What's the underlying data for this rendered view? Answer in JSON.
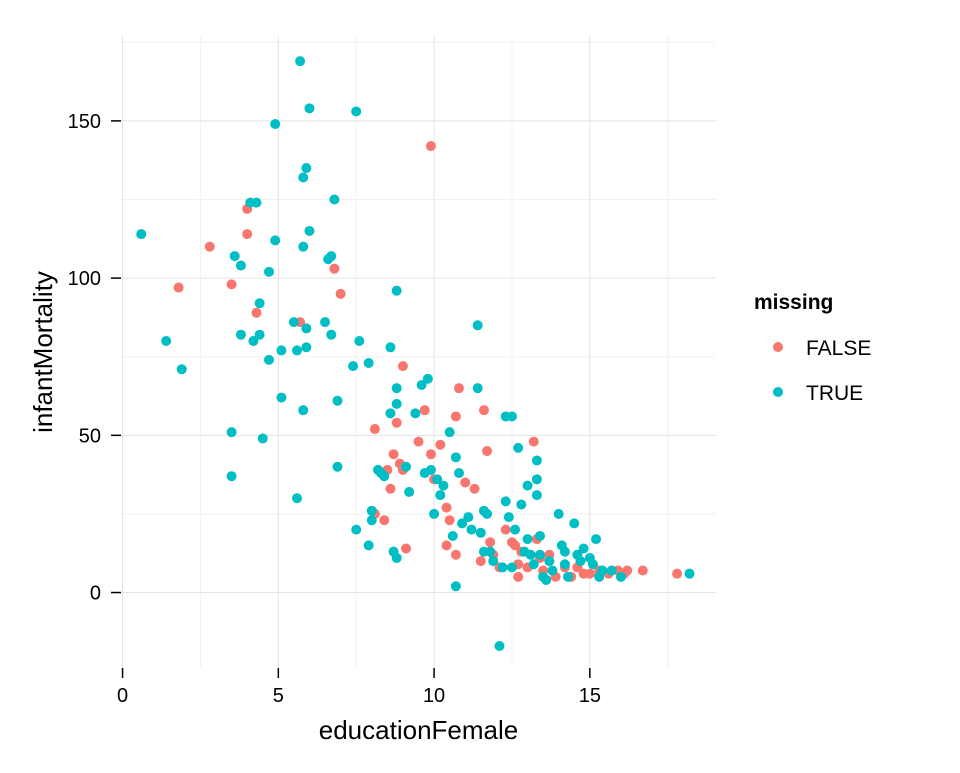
{
  "chart_data": {
    "type": "scatter",
    "title": "",
    "xlabel": "educationFemale",
    "ylabel": "infantMortality",
    "xlim": [
      -0.05,
      19.05
    ],
    "ylim": [
      -24,
      177
    ],
    "x_ticks": [
      0,
      5,
      10,
      15
    ],
    "x_tick_labels": [
      "0",
      "5",
      "10",
      "15"
    ],
    "y_ticks": [
      0,
      50,
      100,
      150
    ],
    "y_tick_labels": [
      "0",
      "50",
      "100",
      "150"
    ],
    "grid": true,
    "legend": {
      "title": "missing",
      "position": "right",
      "entries": [
        "FALSE",
        "TRUE"
      ]
    },
    "colors": {
      "FALSE": "#F8766D",
      "TRUE": "#00BFC4"
    },
    "series": [
      {
        "name": "FALSE",
        "color": "#F8766D",
        "points": [
          [
            1.8,
            97
          ],
          [
            2.8,
            110
          ],
          [
            3.5,
            98
          ],
          [
            4.0,
            114
          ],
          [
            4.0,
            122
          ],
          [
            4.3,
            89
          ],
          [
            5.7,
            86
          ],
          [
            6.8,
            103
          ],
          [
            7.0,
            95
          ],
          [
            9.9,
            142
          ],
          [
            8.1,
            52
          ],
          [
            8.1,
            25
          ],
          [
            8.4,
            23
          ],
          [
            8.5,
            39
          ],
          [
            8.6,
            33
          ],
          [
            8.7,
            44
          ],
          [
            8.8,
            54
          ],
          [
            8.9,
            41
          ],
          [
            9.0,
            72
          ],
          [
            9.0,
            39
          ],
          [
            9.1,
            14
          ],
          [
            9.5,
            48
          ],
          [
            9.7,
            58
          ],
          [
            9.9,
            44
          ],
          [
            10.0,
            36
          ],
          [
            10.2,
            47
          ],
          [
            10.4,
            27
          ],
          [
            10.4,
            15
          ],
          [
            10.5,
            23
          ],
          [
            10.7,
            12
          ],
          [
            10.7,
            56
          ],
          [
            10.8,
            65
          ],
          [
            11.0,
            35
          ],
          [
            11.3,
            33
          ],
          [
            11.5,
            10
          ],
          [
            11.6,
            58
          ],
          [
            11.7,
            45
          ],
          [
            11.8,
            16
          ],
          [
            11.9,
            12
          ],
          [
            12.1,
            8
          ],
          [
            12.3,
            20
          ],
          [
            12.5,
            16
          ],
          [
            12.6,
            15
          ],
          [
            12.7,
            9
          ],
          [
            12.7,
            5
          ],
          [
            12.8,
            13
          ],
          [
            13.0,
            8
          ],
          [
            13.2,
            48
          ],
          [
            13.3,
            17
          ],
          [
            13.4,
            11
          ],
          [
            13.5,
            7
          ],
          [
            13.7,
            12
          ],
          [
            13.9,
            5
          ],
          [
            14.2,
            8
          ],
          [
            14.4,
            5
          ],
          [
            14.6,
            8
          ],
          [
            14.8,
            6
          ],
          [
            15.0,
            6
          ],
          [
            15.3,
            7
          ],
          [
            15.6,
            6
          ],
          [
            15.9,
            7
          ],
          [
            16.1,
            6
          ],
          [
            16.2,
            7
          ],
          [
            16.7,
            7
          ],
          [
            17.8,
            6
          ]
        ]
      },
      {
        "name": "TRUE",
        "color": "#00BFC4",
        "points": [
          [
            0.6,
            114
          ],
          [
            1.4,
            80
          ],
          [
            1.9,
            71
          ],
          [
            3.5,
            51
          ],
          [
            3.5,
            37
          ],
          [
            3.6,
            107
          ],
          [
            3.8,
            104
          ],
          [
            3.8,
            82
          ],
          [
            4.1,
            124
          ],
          [
            4.2,
            80
          ],
          [
            4.3,
            124
          ],
          [
            4.4,
            92
          ],
          [
            4.4,
            82
          ],
          [
            4.5,
            49
          ],
          [
            4.7,
            102
          ],
          [
            4.7,
            74
          ],
          [
            4.9,
            112
          ],
          [
            4.9,
            149
          ],
          [
            5.1,
            77
          ],
          [
            5.1,
            62
          ],
          [
            5.5,
            86
          ],
          [
            5.6,
            77
          ],
          [
            5.6,
            30
          ],
          [
            5.7,
            169
          ],
          [
            5.8,
            58
          ],
          [
            5.8,
            132
          ],
          [
            5.8,
            110
          ],
          [
            5.9,
            135
          ],
          [
            5.9,
            84
          ],
          [
            5.9,
            78
          ],
          [
            6.0,
            115
          ],
          [
            6.0,
            154
          ],
          [
            6.5,
            86
          ],
          [
            6.6,
            106
          ],
          [
            6.7,
            107
          ],
          [
            6.7,
            82
          ],
          [
            6.8,
            125
          ],
          [
            6.9,
            61
          ],
          [
            6.9,
            40
          ],
          [
            7.4,
            72
          ],
          [
            7.5,
            153
          ],
          [
            7.6,
            80
          ],
          [
            7.5,
            20
          ],
          [
            7.9,
            73
          ],
          [
            7.9,
            15
          ],
          [
            8.0,
            26
          ],
          [
            8.0,
            23
          ],
          [
            8.2,
            39
          ],
          [
            8.3,
            38
          ],
          [
            8.4,
            37
          ],
          [
            8.6,
            78
          ],
          [
            8.6,
            57
          ],
          [
            8.7,
            13
          ],
          [
            8.8,
            65
          ],
          [
            8.8,
            96
          ],
          [
            8.8,
            60
          ],
          [
            8.8,
            11
          ],
          [
            9.1,
            40
          ],
          [
            9.2,
            32
          ],
          [
            9.4,
            57
          ],
          [
            9.6,
            66
          ],
          [
            9.7,
            38
          ],
          [
            9.8,
            68
          ],
          [
            9.9,
            39
          ],
          [
            10.0,
            25
          ],
          [
            10.1,
            36
          ],
          [
            10.2,
            31
          ],
          [
            10.3,
            34
          ],
          [
            10.5,
            51
          ],
          [
            10.6,
            18
          ],
          [
            10.7,
            43
          ],
          [
            10.7,
            2
          ],
          [
            10.8,
            38
          ],
          [
            10.9,
            22
          ],
          [
            11.1,
            24
          ],
          [
            11.2,
            20
          ],
          [
            11.4,
            65
          ],
          [
            11.4,
            85
          ],
          [
            11.5,
            19
          ],
          [
            11.6,
            13
          ],
          [
            11.6,
            26
          ],
          [
            11.7,
            25
          ],
          [
            11.8,
            13
          ],
          [
            11.9,
            10
          ],
          [
            12.1,
            -17
          ],
          [
            12.2,
            8
          ],
          [
            12.3,
            56
          ],
          [
            12.3,
            29
          ],
          [
            12.4,
            24
          ],
          [
            12.5,
            56
          ],
          [
            12.5,
            8
          ],
          [
            12.6,
            20
          ],
          [
            12.7,
            46
          ],
          [
            12.8,
            28
          ],
          [
            12.9,
            13
          ],
          [
            13.0,
            34
          ],
          [
            13.0,
            17
          ],
          [
            13.1,
            12
          ],
          [
            13.2,
            9
          ],
          [
            13.3,
            36
          ],
          [
            13.3,
            31
          ],
          [
            13.3,
            42
          ],
          [
            13.4,
            18
          ],
          [
            13.4,
            12
          ],
          [
            13.5,
            5
          ],
          [
            13.6,
            4
          ],
          [
            13.7,
            10
          ],
          [
            13.8,
            7
          ],
          [
            14.0,
            25
          ],
          [
            14.1,
            15
          ],
          [
            14.2,
            13
          ],
          [
            14.2,
            9
          ],
          [
            14.3,
            5
          ],
          [
            14.5,
            22
          ],
          [
            14.6,
            12
          ],
          [
            14.7,
            10
          ],
          [
            14.8,
            14
          ],
          [
            15.0,
            11
          ],
          [
            15.1,
            9
          ],
          [
            15.2,
            17
          ],
          [
            15.3,
            5
          ],
          [
            15.4,
            7
          ],
          [
            15.7,
            7
          ],
          [
            16.0,
            5
          ],
          [
            18.2,
            6
          ]
        ]
      }
    ]
  }
}
